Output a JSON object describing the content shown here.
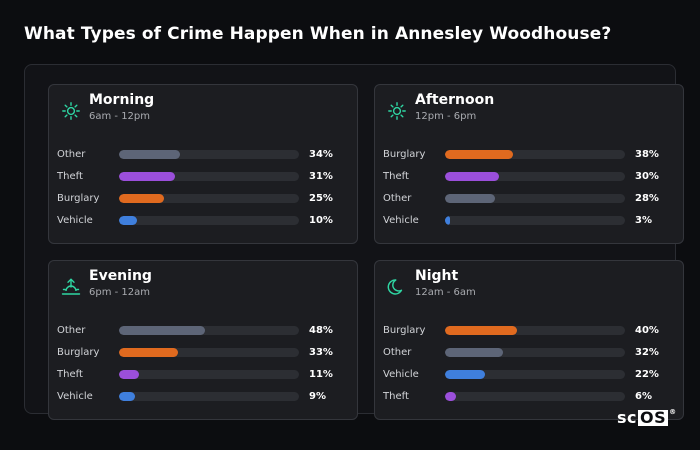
{
  "header": {
    "title": "What Types of Crime Happen When in Annesley Woodhouse?"
  },
  "logo": {
    "prefix": "sc",
    "boxed": "OS",
    "mark": "®"
  },
  "colors": {
    "Other": "#5d6577",
    "Theft": "#9b4fdb",
    "Burglary": "#e06a1f",
    "Vehicle": "#3f7fdd",
    "accent": "#2fd6a3"
  },
  "chart_data": [
    {
      "type": "bar",
      "orientation": "horizontal",
      "title": "Morning",
      "subtitle": "6am - 12pm",
      "icon": "sun-icon",
      "xlim": [
        0,
        100
      ],
      "categories": [
        "Other",
        "Theft",
        "Burglary",
        "Vehicle"
      ],
      "values": [
        34,
        31,
        25,
        10
      ],
      "value_labels": [
        "34%",
        "31%",
        "25%",
        "10%"
      ]
    },
    {
      "type": "bar",
      "orientation": "horizontal",
      "title": "Afternoon",
      "subtitle": "12pm - 6pm",
      "icon": "sun-icon",
      "xlim": [
        0,
        100
      ],
      "categories": [
        "Burglary",
        "Theft",
        "Other",
        "Vehicle"
      ],
      "values": [
        38,
        30,
        28,
        3
      ],
      "value_labels": [
        "38%",
        "30%",
        "28%",
        "3%"
      ]
    },
    {
      "type": "bar",
      "orientation": "horizontal",
      "title": "Evening",
      "subtitle": "6pm - 12am",
      "icon": "sunset-icon",
      "xlim": [
        0,
        100
      ],
      "categories": [
        "Other",
        "Burglary",
        "Theft",
        "Vehicle"
      ],
      "values": [
        48,
        33,
        11,
        9
      ],
      "value_labels": [
        "48%",
        "33%",
        "11%",
        "9%"
      ]
    },
    {
      "type": "bar",
      "orientation": "horizontal",
      "title": "Night",
      "subtitle": "12am - 6am",
      "icon": "moon-icon",
      "xlim": [
        0,
        100
      ],
      "categories": [
        "Burglary",
        "Other",
        "Vehicle",
        "Theft"
      ],
      "values": [
        40,
        32,
        22,
        6
      ],
      "value_labels": [
        "40%",
        "32%",
        "22%",
        "6%"
      ]
    }
  ]
}
